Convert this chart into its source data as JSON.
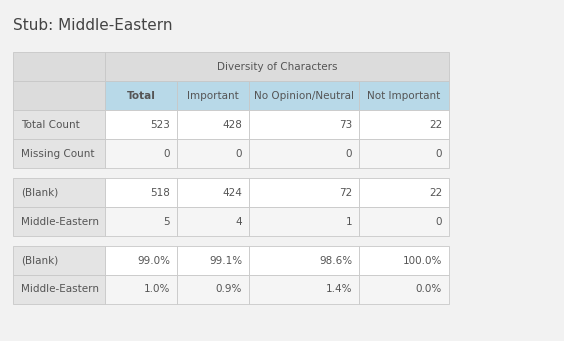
{
  "title": "Stub: Middle-Eastern",
  "col_header_top": "Diversity of Characters",
  "col_headers": [
    "Total",
    "Important",
    "No Opinion/Neutral",
    "Not Important"
  ],
  "row_groups": [
    {
      "rows": [
        {
          "label": "Total Count",
          "values": [
            "523",
            "428",
            "73",
            "22"
          ]
        },
        {
          "label": "Missing Count",
          "values": [
            "0",
            "0",
            "0",
            "0"
          ]
        }
      ]
    },
    {
      "rows": [
        {
          "label": "(Blank)",
          "values": [
            "518",
            "424",
            "72",
            "22"
          ]
        },
        {
          "label": "Middle-Eastern",
          "values": [
            "5",
            "4",
            "1",
            "0"
          ]
        }
      ]
    },
    {
      "rows": [
        {
          "label": "(Blank)",
          "values": [
            "99.0%",
            "99.1%",
            "98.6%",
            "100.0%"
          ]
        },
        {
          "label": "Middle-Eastern",
          "values": [
            "1.0%",
            "0.9%",
            "1.4%",
            "0.0%"
          ]
        }
      ]
    }
  ],
  "bg_color": "#f2f2f2",
  "table_bg": "#ffffff",
  "header_top_bg": "#dcdcdc",
  "header_row_bg": "#b8d9e8",
  "row_label_bg": "#e4e4e4",
  "alt_row_bg": "#f5f5f5",
  "border_color": "#c8c8c8",
  "text_color": "#555555",
  "title_color": "#444444",
  "title_fontsize": 11,
  "header_fontsize": 7.5,
  "cell_fontsize": 7.5,
  "fig_width": 5.64,
  "fig_height": 3.41,
  "dpi": 100
}
